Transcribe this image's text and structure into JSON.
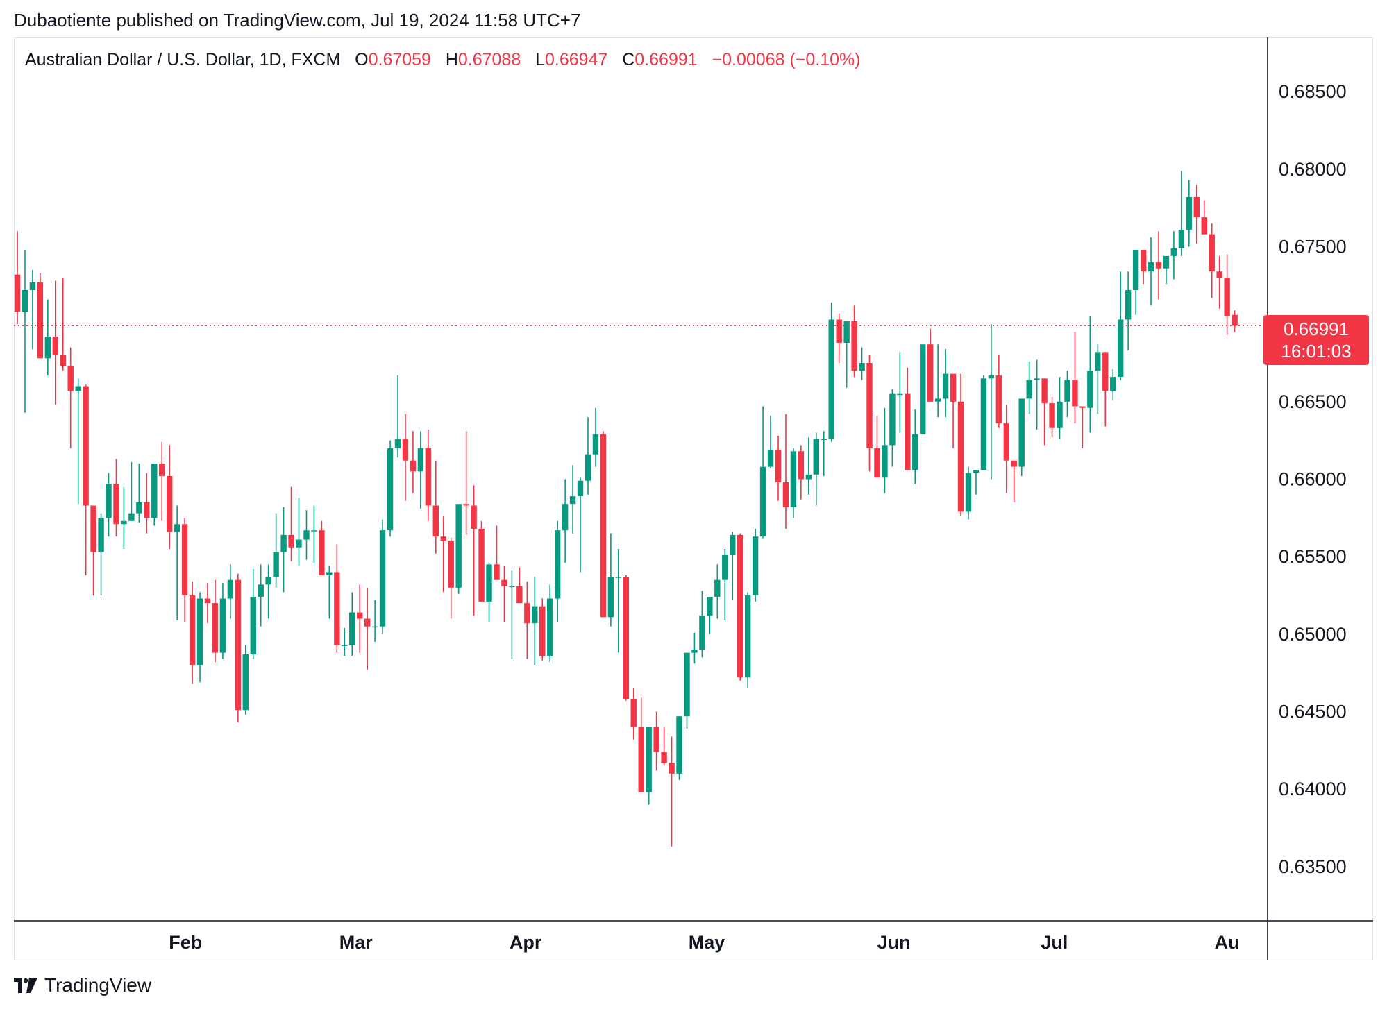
{
  "header": {
    "published_by": "Dubaotiente published on TradingView.com, Jul 19, 2024 11:58 UTC+7"
  },
  "legend": {
    "symbol": "Australian Dollar / U.S. Dollar, 1D, FXCM",
    "o_label": "O",
    "o_value": "0.67059",
    "h_label": "H",
    "h_value": "0.67088",
    "l_label": "L",
    "l_value": "0.66947",
    "c_label": "C",
    "c_value": "0.66991",
    "change": "−0.00068 (−0.10%)"
  },
  "price_badge": {
    "price": "0.66991",
    "countdown": "16:01:03"
  },
  "footer": {
    "brand": "TradingView"
  },
  "colors": {
    "up": "#089981",
    "down": "#f23645",
    "grid": "#e0e3eb",
    "axis": "#131722"
  },
  "chart_data": {
    "type": "candlestick",
    "title": "Australian Dollar / U.S. Dollar, 1D, FXCM",
    "ylim": [
      0.6315,
      0.6885
    ],
    "y_ticks": [
      "0.68500",
      "0.68000",
      "0.67500",
      "0.67000",
      "0.66500",
      "0.66000",
      "0.65500",
      "0.65000",
      "0.64500",
      "0.64000",
      "0.63500"
    ],
    "y_tick_values": [
      0.685,
      0.68,
      0.675,
      0.67,
      0.665,
      0.66,
      0.655,
      0.65,
      0.645,
      0.64,
      0.635
    ],
    "x_labels": [
      "Feb",
      "Mar",
      "Apr",
      "May",
      "Jun",
      "Jul",
      "Au"
    ],
    "x_label_index": [
      22.1,
      44.5,
      66.8,
      90.6,
      115.2,
      136.3,
      159.0
    ],
    "last_price": 0.66991,
    "legend_position": "top-left",
    "grid": false,
    "candles_ohlc": [
      [
        0.6732,
        0.676,
        0.67,
        0.6708
      ],
      [
        0.6708,
        0.6748,
        0.6643,
        0.6722
      ],
      [
        0.6722,
        0.6735,
        0.6684,
        0.6727
      ],
      [
        0.6727,
        0.6733,
        0.6679,
        0.6678
      ],
      [
        0.6678,
        0.6716,
        0.6667,
        0.6692
      ],
      [
        0.6692,
        0.6728,
        0.6648,
        0.668
      ],
      [
        0.668,
        0.673,
        0.667,
        0.6673
      ],
      [
        0.6673,
        0.6685,
        0.662,
        0.6657
      ],
      [
        0.6657,
        0.6665,
        0.6584,
        0.666
      ],
      [
        0.666,
        0.6661,
        0.6538,
        0.6583
      ],
      [
        0.6583,
        0.6579,
        0.6525,
        0.6553
      ],
      [
        0.6553,
        0.6578,
        0.6525,
        0.6575
      ],
      [
        0.6575,
        0.6604,
        0.6563,
        0.6597
      ],
      [
        0.6597,
        0.6613,
        0.6563,
        0.6571
      ],
      [
        0.6571,
        0.6595,
        0.6555,
        0.6573
      ],
      [
        0.6573,
        0.6611,
        0.6573,
        0.6578
      ],
      [
        0.6578,
        0.661,
        0.6572,
        0.6585
      ],
      [
        0.6585,
        0.6604,
        0.6565,
        0.6575
      ],
      [
        0.6575,
        0.661,
        0.657,
        0.661
      ],
      [
        0.661,
        0.6624,
        0.6573,
        0.6602
      ],
      [
        0.6602,
        0.6622,
        0.6555,
        0.6566
      ],
      [
        0.6566,
        0.6583,
        0.6509,
        0.6571
      ],
      [
        0.6571,
        0.6575,
        0.6508,
        0.6525
      ],
      [
        0.6525,
        0.6534,
        0.6468,
        0.648
      ],
      [
        0.648,
        0.6527,
        0.6469,
        0.6523
      ],
      [
        0.6523,
        0.6533,
        0.6507,
        0.652
      ],
      [
        0.652,
        0.6535,
        0.6482,
        0.6488
      ],
      [
        0.6488,
        0.6533,
        0.6484,
        0.6523
      ],
      [
        0.6523,
        0.6545,
        0.651,
        0.6535
      ],
      [
        0.6535,
        0.6539,
        0.6443,
        0.6451
      ],
      [
        0.6451,
        0.6493,
        0.6448,
        0.6487
      ],
      [
        0.6487,
        0.6542,
        0.6484,
        0.6524
      ],
      [
        0.6524,
        0.6545,
        0.6505,
        0.6532
      ],
      [
        0.6532,
        0.6545,
        0.651,
        0.6537
      ],
      [
        0.6537,
        0.6578,
        0.653,
        0.6553
      ],
      [
        0.6553,
        0.6582,
        0.6527,
        0.6564
      ],
      [
        0.6564,
        0.6595,
        0.6547,
        0.6556
      ],
      [
        0.6556,
        0.6588,
        0.6544,
        0.6561
      ],
      [
        0.6561,
        0.658,
        0.6548,
        0.6567
      ],
      [
        0.6567,
        0.6583,
        0.6546,
        0.6567
      ],
      [
        0.6567,
        0.6573,
        0.6538,
        0.6538
      ],
      [
        0.6538,
        0.6544,
        0.651,
        0.654
      ],
      [
        0.654,
        0.6558,
        0.6488,
        0.6493
      ],
      [
        0.6493,
        0.6504,
        0.6486,
        0.6493
      ],
      [
        0.6493,
        0.6527,
        0.6486,
        0.6514
      ],
      [
        0.6514,
        0.6532,
        0.6488,
        0.651
      ],
      [
        0.651,
        0.653,
        0.6477,
        0.6505
      ],
      [
        0.6505,
        0.6522,
        0.6495,
        0.6505
      ],
      [
        0.6505,
        0.6574,
        0.65,
        0.6567
      ],
      [
        0.6567,
        0.6625,
        0.6563,
        0.662
      ],
      [
        0.662,
        0.6667,
        0.6614,
        0.6626
      ],
      [
        0.6626,
        0.6642,
        0.6586,
        0.6612
      ],
      [
        0.6612,
        0.6631,
        0.6591,
        0.6605
      ],
      [
        0.6605,
        0.6631,
        0.6581,
        0.662
      ],
      [
        0.662,
        0.6632,
        0.6573,
        0.6583
      ],
      [
        0.6583,
        0.6612,
        0.6552,
        0.6563
      ],
      [
        0.6563,
        0.6576,
        0.6527,
        0.656
      ],
      [
        0.656,
        0.6562,
        0.651,
        0.653
      ],
      [
        0.653,
        0.6584,
        0.6526,
        0.6584
      ],
      [
        0.6584,
        0.6631,
        0.6564,
        0.6583
      ],
      [
        0.6583,
        0.6596,
        0.6512,
        0.6568
      ],
      [
        0.6568,
        0.6573,
        0.6521,
        0.6521
      ],
      [
        0.6521,
        0.6546,
        0.6508,
        0.6545
      ],
      [
        0.6545,
        0.657,
        0.6535,
        0.6535
      ],
      [
        0.6535,
        0.6544,
        0.6508,
        0.6531
      ],
      [
        0.6531,
        0.6541,
        0.6484,
        0.6531
      ],
      [
        0.6531,
        0.6543,
        0.6526,
        0.652
      ],
      [
        0.652,
        0.6534,
        0.6484,
        0.6507
      ],
      [
        0.6507,
        0.6537,
        0.648,
        0.6518
      ],
      [
        0.6518,
        0.6523,
        0.6483,
        0.6486
      ],
      [
        0.6486,
        0.6532,
        0.6482,
        0.6523
      ],
      [
        0.6523,
        0.6573,
        0.6508,
        0.6567
      ],
      [
        0.6567,
        0.66,
        0.6546,
        0.6584
      ],
      [
        0.6584,
        0.6609,
        0.6565,
        0.6589
      ],
      [
        0.6589,
        0.6601,
        0.654,
        0.6599
      ],
      [
        0.6599,
        0.664,
        0.659,
        0.6616
      ],
      [
        0.6616,
        0.6646,
        0.6608,
        0.6629
      ],
      [
        0.6629,
        0.6631,
        0.6515,
        0.6511
      ],
      [
        0.6511,
        0.6565,
        0.6505,
        0.6537
      ],
      [
        0.6537,
        0.6555,
        0.6488,
        0.6537
      ],
      [
        0.6537,
        0.6538,
        0.6457,
        0.6458
      ],
      [
        0.6458,
        0.6465,
        0.6432,
        0.644
      ],
      [
        0.644,
        0.6459,
        0.6398,
        0.6398
      ],
      [
        0.6398,
        0.6433,
        0.639,
        0.644
      ],
      [
        0.644,
        0.645,
        0.6412,
        0.6424
      ],
      [
        0.6424,
        0.644,
        0.6415,
        0.6417
      ],
      [
        0.6417,
        0.6434,
        0.6363,
        0.641
      ],
      [
        0.641,
        0.6447,
        0.6406,
        0.6447
      ],
      [
        0.6447,
        0.6488,
        0.6439,
        0.6488
      ],
      [
        0.6488,
        0.6501,
        0.6481,
        0.649
      ],
      [
        0.649,
        0.6528,
        0.6485,
        0.6512
      ],
      [
        0.6512,
        0.6524,
        0.65,
        0.6524
      ],
      [
        0.6524,
        0.6545,
        0.651,
        0.6535
      ],
      [
        0.6535,
        0.6555,
        0.6509,
        0.6551
      ],
      [
        0.6551,
        0.6566,
        0.6522,
        0.6564
      ],
      [
        0.6564,
        0.6565,
        0.647,
        0.6472
      ],
      [
        0.6472,
        0.6527,
        0.6465,
        0.6525
      ],
      [
        0.6525,
        0.6568,
        0.6521,
        0.6563
      ],
      [
        0.6563,
        0.6647,
        0.6562,
        0.6608
      ],
      [
        0.6608,
        0.6641,
        0.6607,
        0.6619
      ],
      [
        0.6619,
        0.6628,
        0.6586,
        0.6598
      ],
      [
        0.6598,
        0.6642,
        0.6568,
        0.6582
      ],
      [
        0.6582,
        0.662,
        0.6575,
        0.6618
      ],
      [
        0.6618,
        0.6622,
        0.6587,
        0.66
      ],
      [
        0.66,
        0.6627,
        0.659,
        0.6603
      ],
      [
        0.6603,
        0.663,
        0.6583,
        0.6626
      ],
      [
        0.6626,
        0.6631,
        0.6602,
        0.6626
      ],
      [
        0.6626,
        0.6714,
        0.6624,
        0.6703
      ],
      [
        0.6703,
        0.6707,
        0.6675,
        0.6688
      ],
      [
        0.6688,
        0.6701,
        0.6659,
        0.6702
      ],
      [
        0.6702,
        0.6712,
        0.6666,
        0.667
      ],
      [
        0.667,
        0.6685,
        0.6664,
        0.6675
      ],
      [
        0.6675,
        0.668,
        0.6605,
        0.662
      ],
      [
        0.662,
        0.6641,
        0.6601,
        0.6601
      ],
      [
        0.6601,
        0.6646,
        0.6591,
        0.6622
      ],
      [
        0.6622,
        0.6658,
        0.6608,
        0.6655
      ],
      [
        0.6655,
        0.6682,
        0.663,
        0.6655
      ],
      [
        0.6655,
        0.6672,
        0.661,
        0.6606
      ],
      [
        0.6606,
        0.6645,
        0.6597,
        0.6629
      ],
      [
        0.6629,
        0.6662,
        0.6631,
        0.6687
      ],
      [
        0.6687,
        0.6697,
        0.6652,
        0.665
      ],
      [
        0.665,
        0.6687,
        0.664,
        0.6652
      ],
      [
        0.6652,
        0.6684,
        0.664,
        0.6668
      ],
      [
        0.6668,
        0.6665,
        0.662,
        0.665
      ],
      [
        0.665,
        0.6668,
        0.6576,
        0.6579
      ],
      [
        0.6579,
        0.6608,
        0.6574,
        0.6604
      ],
      [
        0.6604,
        0.6606,
        0.659,
        0.6606
      ],
      [
        0.6606,
        0.6667,
        0.6606,
        0.6665
      ],
      [
        0.6665,
        0.67,
        0.66,
        0.6667
      ],
      [
        0.6667,
        0.668,
        0.6633,
        0.6636
      ],
      [
        0.6636,
        0.6648,
        0.6591,
        0.6612
      ],
      [
        0.6612,
        0.661,
        0.6585,
        0.6608
      ],
      [
        0.6608,
        0.665,
        0.6602,
        0.6652
      ],
      [
        0.6652,
        0.6676,
        0.6642,
        0.6664
      ],
      [
        0.6664,
        0.6677,
        0.6632,
        0.6665
      ],
      [
        0.6665,
        0.6663,
        0.6622,
        0.6649
      ],
      [
        0.6649,
        0.6653,
        0.6627,
        0.6633
      ],
      [
        0.6633,
        0.6666,
        0.6626,
        0.665
      ],
      [
        0.665,
        0.667,
        0.664,
        0.6664
      ],
      [
        0.6664,
        0.6695,
        0.6636,
        0.6647
      ],
      [
        0.6647,
        0.6647,
        0.662,
        0.6646
      ],
      [
        0.6646,
        0.6705,
        0.663,
        0.667
      ],
      [
        0.667,
        0.6687,
        0.6642,
        0.6682
      ],
      [
        0.6682,
        0.6682,
        0.6634,
        0.6657
      ],
      [
        0.6657,
        0.6671,
        0.6651,
        0.6666
      ],
      [
        0.6666,
        0.6734,
        0.6664,
        0.6703
      ],
      [
        0.6703,
        0.6734,
        0.6683,
        0.6722
      ],
      [
        0.6722,
        0.6748,
        0.6706,
        0.6748
      ],
      [
        0.6748,
        0.6748,
        0.6726,
        0.6734
      ],
      [
        0.6734,
        0.6756,
        0.6712,
        0.674
      ],
      [
        0.674,
        0.676,
        0.6716,
        0.6736
      ],
      [
        0.6736,
        0.6741,
        0.6726,
        0.6744
      ],
      [
        0.6744,
        0.676,
        0.6729,
        0.6749
      ],
      [
        0.6749,
        0.6799,
        0.6744,
        0.6761
      ],
      [
        0.6761,
        0.6793,
        0.675,
        0.6782
      ],
      [
        0.6782,
        0.679,
        0.6752,
        0.6769
      ],
      [
        0.6769,
        0.678,
        0.6758,
        0.6758
      ],
      [
        0.6758,
        0.6765,
        0.6717,
        0.6734
      ],
      [
        0.6734,
        0.6744,
        0.671,
        0.673
      ],
      [
        0.673,
        0.6745,
        0.6693,
        0.6705
      ],
      [
        0.6706,
        0.6709,
        0.6695,
        0.6699
      ]
    ]
  }
}
